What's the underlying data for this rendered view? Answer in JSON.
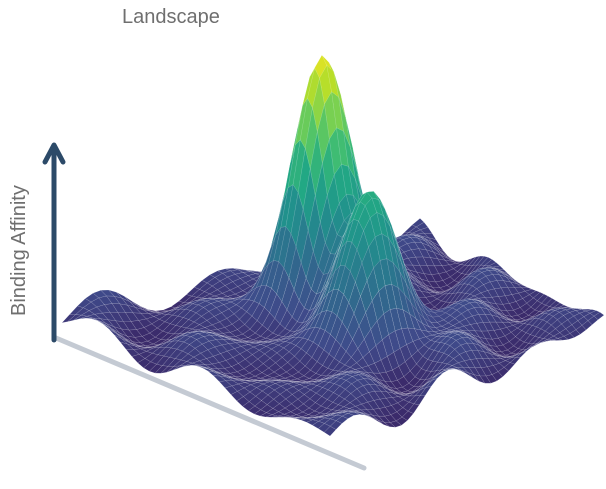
{
  "figure": {
    "title": "Landscape",
    "y_axis_label": "Binding Affinity"
  },
  "surface": {
    "type": "3d-surface",
    "description_terms": [
      "peak",
      "valley"
    ],
    "colormap": [
      "#3b2b6b",
      "#3f4a8a",
      "#35608d",
      "#2a788e",
      "#21918c",
      "#22a884",
      "#44bf70",
      "#7ad151",
      "#bddf26",
      "#fde725"
    ],
    "grid": true,
    "peaks": [
      {
        "name": "primary-peak",
        "relative_height": 1.0
      },
      {
        "name": "secondary-peak",
        "relative_height": 0.62
      }
    ]
  },
  "axes": {
    "vertical_axis_color": "#2c4a68",
    "floor_axis_color": "#c4cad3"
  }
}
